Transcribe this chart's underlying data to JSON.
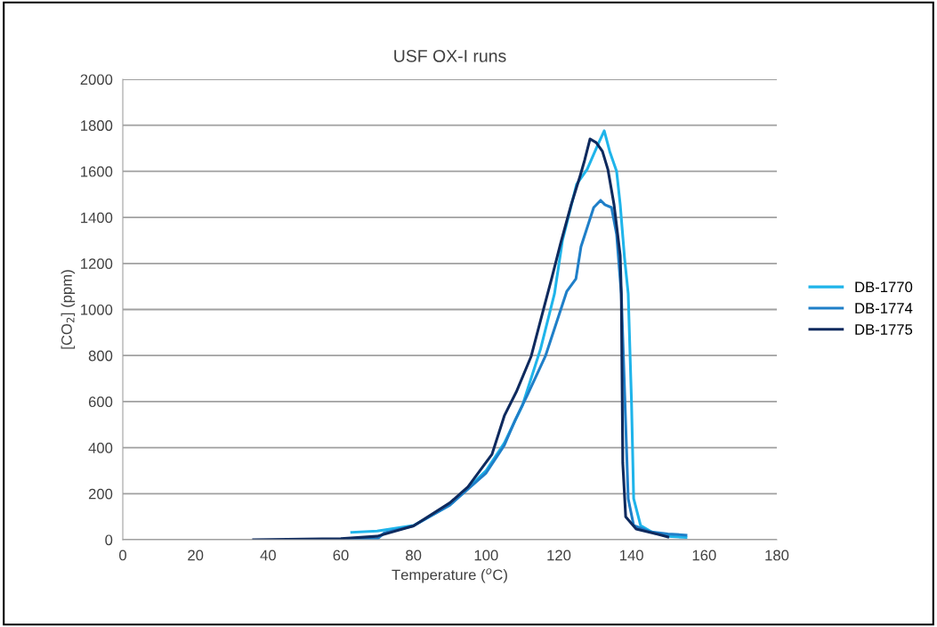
{
  "chart_data": {
    "type": "line",
    "title": "USF OX-I runs",
    "xlabel": "Temperature ($^{o}$C)",
    "ylabel": "[CO$_{2}$] (ppm)",
    "xlim": [
      0,
      180
    ],
    "xticks": [
      0,
      20,
      40,
      60,
      80,
      100,
      120,
      140,
      160,
      180
    ],
    "ylim": [
      0,
      2000
    ],
    "yticks": [
      0,
      200,
      400,
      600,
      800,
      1000,
      1200,
      1400,
      1600,
      1800,
      2000
    ],
    "grid": "y",
    "legend": "right",
    "marker": "none",
    "line_style": "solid",
    "series": [
      {
        "name": "DB-1770",
        "color": "#1fb4ea",
        "x": [
          63,
          70,
          80,
          90,
          100,
          105,
          110,
          115,
          118.8,
          121,
          124.9,
          127.8,
          131,
          132.5,
          134,
          135.9,
          136.9,
          138.1,
          139.1,
          140,
          140.6,
          142.5,
          146,
          150,
          155
        ],
        "values": [
          32,
          38,
          62,
          150,
          300,
          420,
          584,
          830,
          1068,
          1300,
          1544,
          1609,
          1725,
          1776,
          1687,
          1601,
          1455,
          1222,
          1068,
          600,
          178,
          62,
          30,
          15,
          10
        ]
      },
      {
        "name": "DB-1774",
        "color": "#1f7fc8",
        "x": [
          62,
          70,
          72,
          80,
          90,
          100,
          105,
          108,
          111.4,
          116.3,
          122.2,
          124.7,
          126.1,
          129.6,
          131.5,
          132.7,
          134.5,
          135.9,
          137.2,
          138.2,
          139.1,
          140.6,
          145,
          150,
          155
        ],
        "values": [
          3,
          3,
          30,
          60,
          150,
          290,
          410,
          520,
          630,
          797,
          1079,
          1133,
          1273,
          1443,
          1474,
          1455,
          1443,
          1327,
          1068,
          600,
          178,
          62,
          35,
          25,
          20
        ]
      },
      {
        "name": "DB-1775",
        "color": "#0e2a5e",
        "x": [
          36,
          50,
          60,
          70,
          80,
          90,
          95,
          101.6,
          105,
          108.3,
          112.4,
          115.6,
          118,
          120.5,
          123.4,
          125.9,
          127.1,
          128.6,
          130.3,
          132,
          133.5,
          135.2,
          136.9,
          137.2,
          137.6,
          138.4,
          141.3,
          147.4,
          150
        ],
        "values": [
          0,
          3,
          5,
          15,
          60,
          160,
          230,
          371,
          538,
          642,
          797,
          990,
          1133,
          1288,
          1455,
          1582,
          1648,
          1741,
          1725,
          1687,
          1609,
          1455,
          1234,
          1068,
          333,
          100,
          46,
          23,
          12
        ]
      }
    ]
  }
}
